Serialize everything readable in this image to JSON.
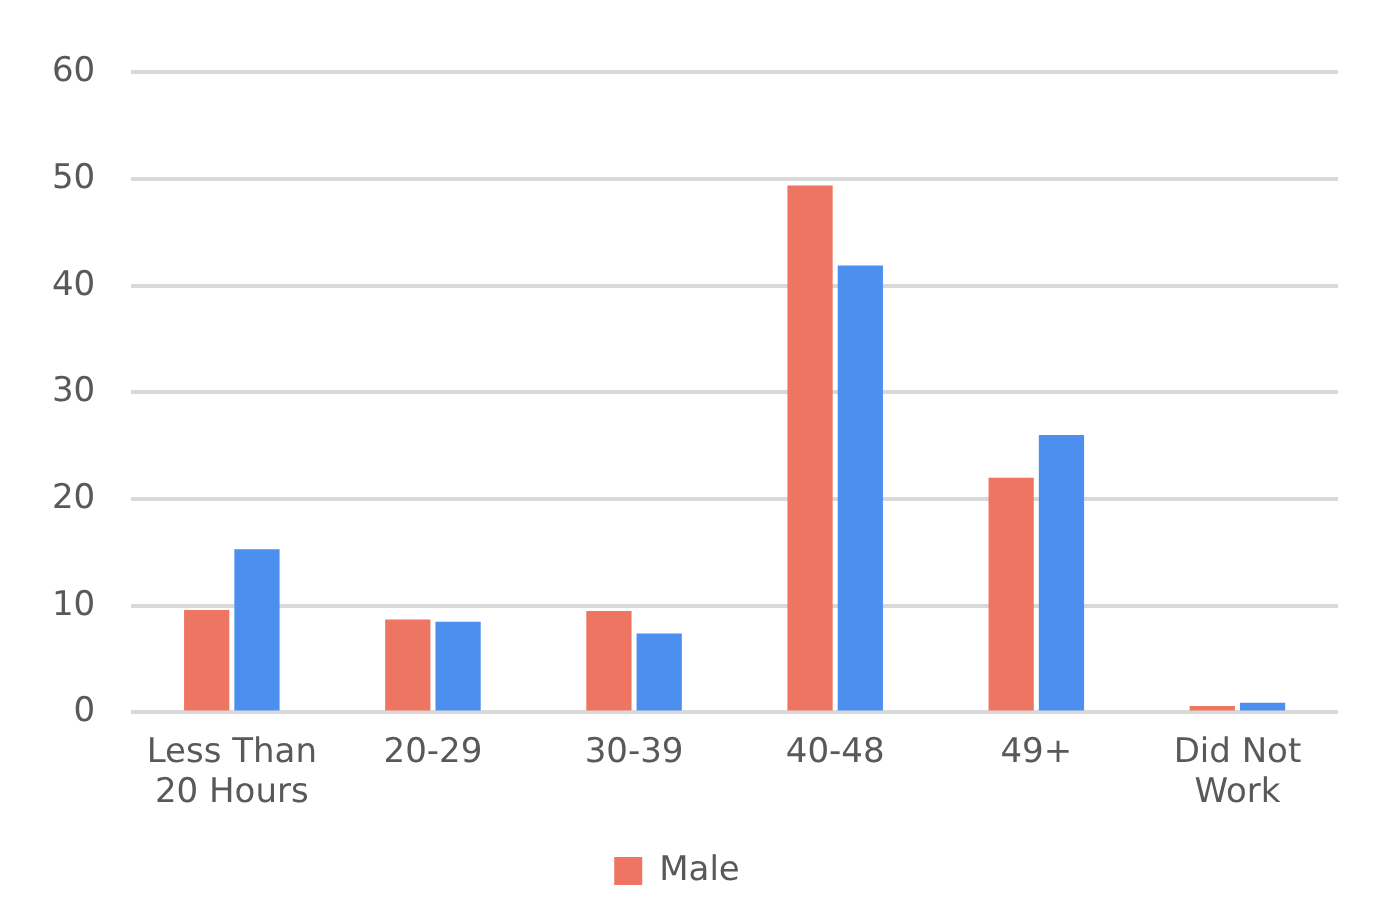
{
  "chart_data": {
    "type": "bar",
    "categories": [
      "Less Than 20 Hours",
      "20-29",
      "30-39",
      "40-48",
      "49+",
      "Did Not Work"
    ],
    "series": [
      {
        "name": "Male",
        "color": "#ee7561",
        "values": [
          9.6,
          8.7,
          9.5,
          49.4,
          22,
          0.6
        ]
      },
      {
        "color": "#4c8fef",
        "values": [
          15.3,
          8.5,
          7.4,
          41.9,
          26,
          0.9
        ]
      }
    ],
    "ylim": [
      0,
      60
    ],
    "yticks": [
      0,
      10,
      20,
      30,
      40,
      50,
      60
    ],
    "grid": "y",
    "legend": "bottom"
  }
}
